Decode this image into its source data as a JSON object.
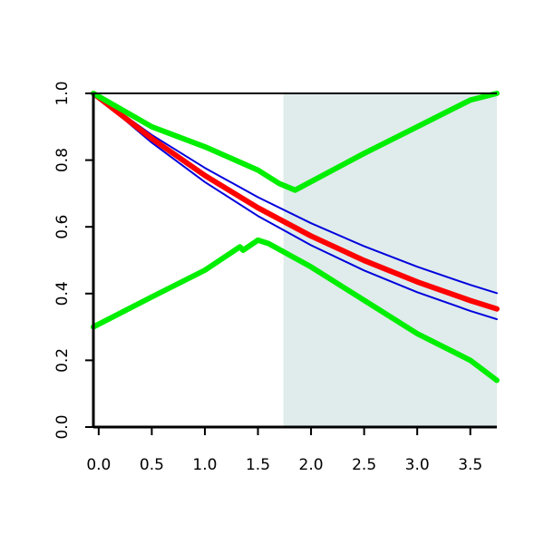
{
  "chart_data": {
    "type": "line",
    "title": "",
    "xlabel": "",
    "ylabel": "",
    "xlim": [
      -0.05,
      3.75
    ],
    "ylim": [
      0,
      1
    ],
    "x_ticks": [
      0,
      0.5,
      1,
      1.5,
      2,
      2.5,
      3,
      3.5
    ],
    "x_tick_labels": [
      "0.0",
      "0.5",
      "1.0",
      "1.5",
      "2.0",
      "2.5",
      "3.0",
      "3.5"
    ],
    "y_ticks": [
      0,
      0.2,
      0.4,
      0.6,
      0.8,
      1
    ],
    "y_tick_labels": [
      "0.0",
      "0.2",
      "0.4",
      "0.6",
      "0.8",
      "1.0"
    ],
    "grid": false,
    "shaded_region": {
      "x_start": 1.74,
      "x_end": 3.75,
      "color": "#dfeceb"
    },
    "series": [
      {
        "color": "#0000dd",
        "width": "thin",
        "points": [
          [
            -0.05,
            1.0
          ],
          [
            0.5,
            0.8756
          ],
          [
            1.0,
            0.7766
          ],
          [
            1.5,
            0.6888
          ],
          [
            2.0,
            0.6109
          ],
          [
            2.5,
            0.5418
          ],
          [
            3.0,
            0.4805
          ],
          [
            3.5,
            0.4262
          ],
          [
            3.75,
            0.4014
          ]
        ]
      },
      {
        "color": "#0000dd",
        "width": "thin",
        "points": [
          [
            -0.05,
            1.0
          ],
          [
            0.5,
            0.8524
          ],
          [
            1.0,
            0.7342
          ],
          [
            1.5,
            0.6325
          ],
          [
            2.0,
            0.5448
          ],
          [
            2.5,
            0.4693
          ],
          [
            3.0,
            0.4042
          ],
          [
            3.5,
            0.3482
          ],
          [
            3.75,
            0.3231
          ]
        ]
      },
      {
        "color": "#ff0000",
        "width": "thick",
        "points": [
          [
            -0.05,
            1.0
          ],
          [
            0.5,
            0.8647
          ],
          [
            1.0,
            0.7537
          ],
          [
            1.5,
            0.657
          ],
          [
            2.0,
            0.5726
          ],
          [
            2.5,
            0.4991
          ],
          [
            3.0,
            0.435
          ],
          [
            3.5,
            0.3792
          ],
          [
            3.75,
            0.354
          ]
        ]
      },
      {
        "color": "#00ee00",
        "width": "thick",
        "points": [
          [
            -0.05,
            1.0
          ],
          [
            0.5,
            0.9
          ],
          [
            1.0,
            0.84
          ],
          [
            1.5,
            0.77
          ],
          [
            1.7,
            0.73
          ],
          [
            1.85,
            0.71
          ],
          [
            2.5,
            0.82
          ],
          [
            3.0,
            0.9
          ],
          [
            3.5,
            0.98
          ],
          [
            3.75,
            1.0
          ]
        ]
      },
      {
        "color": "#00ee00",
        "width": "thick",
        "points": [
          [
            -0.05,
            0.3
          ],
          [
            0.5,
            0.39
          ],
          [
            1.0,
            0.47
          ],
          [
            1.33,
            0.54
          ],
          [
            1.36,
            0.53
          ],
          [
            1.5,
            0.56
          ],
          [
            1.6,
            0.55
          ],
          [
            2.0,
            0.48
          ],
          [
            2.5,
            0.38
          ],
          [
            3.0,
            0.28
          ],
          [
            3.5,
            0.2
          ],
          [
            3.75,
            0.14
          ]
        ]
      }
    ]
  }
}
